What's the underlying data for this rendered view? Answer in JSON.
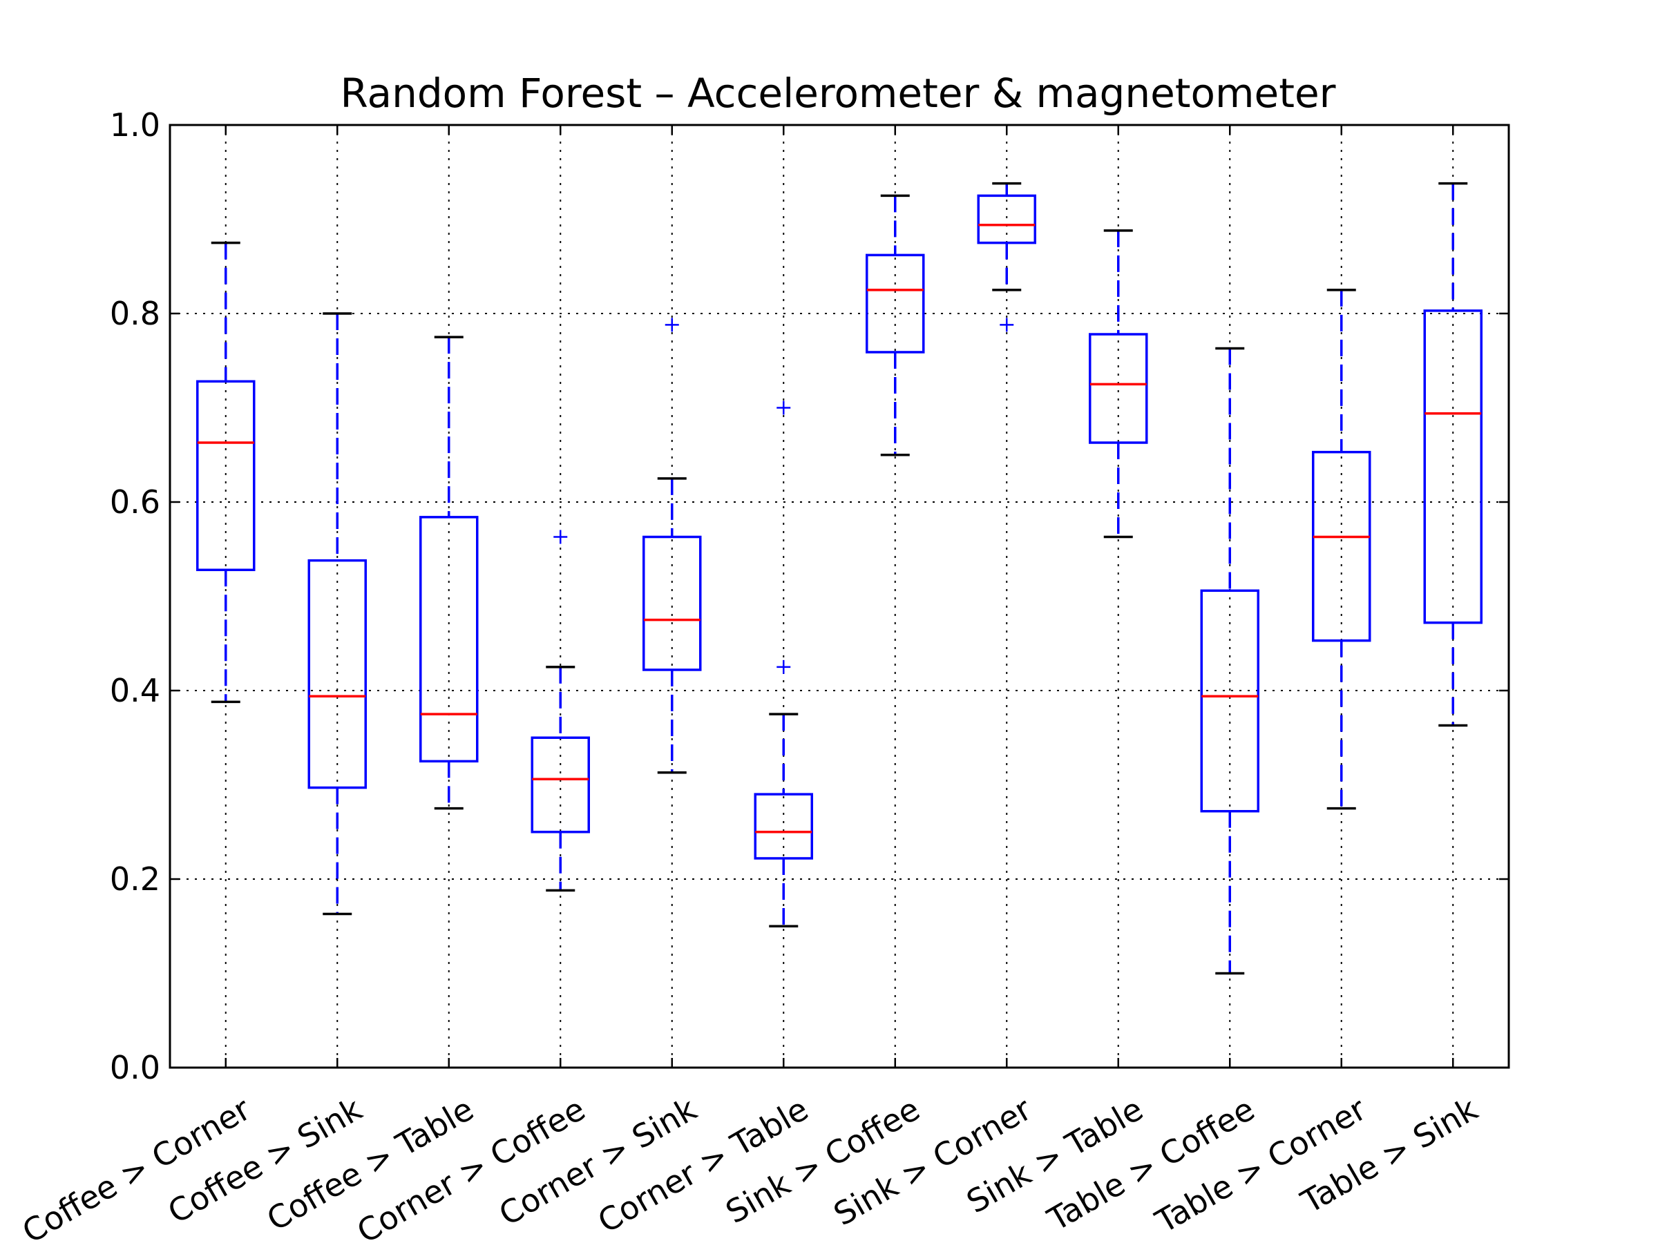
{
  "chart_data": {
    "type": "boxplot",
    "title": "Random Forest – Accelerometer & magnetometer",
    "xlabel": "",
    "ylabel": "",
    "ylim": [
      0.0,
      1.0
    ],
    "yticks": [
      "0.0",
      "0.2",
      "0.4",
      "0.6",
      "0.8",
      "1.0"
    ],
    "ytick_values": [
      0.0,
      0.2,
      0.4,
      0.6,
      0.8,
      1.0
    ],
    "grid": true,
    "colors": {
      "box": "#0000ff",
      "median": "#ff0000",
      "cap": "#000000",
      "flier": "#0000ff"
    },
    "categories": [
      "Coffee > Corner",
      "Coffee > Sink",
      "Coffee > Table",
      "Corner > Coffee",
      "Corner > Sink",
      "Corner > Table",
      "Sink > Coffee",
      "Sink > Corner",
      "Sink > Table",
      "Table > Coffee",
      "Table > Corner",
      "Table > Sink"
    ],
    "boxes": [
      {
        "whislo": 0.388,
        "q1": 0.528,
        "med": 0.663,
        "q3": 0.728,
        "whishi": 0.875,
        "fliers": []
      },
      {
        "whislo": 0.163,
        "q1": 0.297,
        "med": 0.394,
        "q3": 0.538,
        "whishi": 0.8,
        "fliers": []
      },
      {
        "whislo": 0.275,
        "q1": 0.325,
        "med": 0.375,
        "q3": 0.584,
        "whishi": 0.775,
        "fliers": []
      },
      {
        "whislo": 0.188,
        "q1": 0.25,
        "med": 0.306,
        "q3": 0.35,
        "whishi": 0.425,
        "fliers": [
          0.563
        ]
      },
      {
        "whislo": 0.313,
        "q1": 0.422,
        "med": 0.475,
        "q3": 0.563,
        "whishi": 0.625,
        "fliers": [
          0.788
        ]
      },
      {
        "whislo": 0.15,
        "q1": 0.222,
        "med": 0.25,
        "q3": 0.29,
        "whishi": 0.375,
        "fliers": [
          0.425,
          0.7
        ]
      },
      {
        "whislo": 0.65,
        "q1": 0.759,
        "med": 0.825,
        "q3": 0.862,
        "whishi": 0.925,
        "fliers": []
      },
      {
        "whislo": 0.825,
        "q1": 0.875,
        "med": 0.894,
        "q3": 0.925,
        "whishi": 0.938,
        "fliers": [
          0.788
        ]
      },
      {
        "whislo": 0.563,
        "q1": 0.663,
        "med": 0.725,
        "q3": 0.778,
        "whishi": 0.888,
        "fliers": []
      },
      {
        "whislo": 0.1,
        "q1": 0.272,
        "med": 0.394,
        "q3": 0.506,
        "whishi": 0.763,
        "fliers": []
      },
      {
        "whislo": 0.275,
        "q1": 0.453,
        "med": 0.563,
        "q3": 0.653,
        "whishi": 0.825,
        "fliers": []
      },
      {
        "whislo": 0.363,
        "q1": 0.472,
        "med": 0.694,
        "q3": 0.803,
        "whishi": 0.938,
        "fliers": []
      }
    ]
  }
}
